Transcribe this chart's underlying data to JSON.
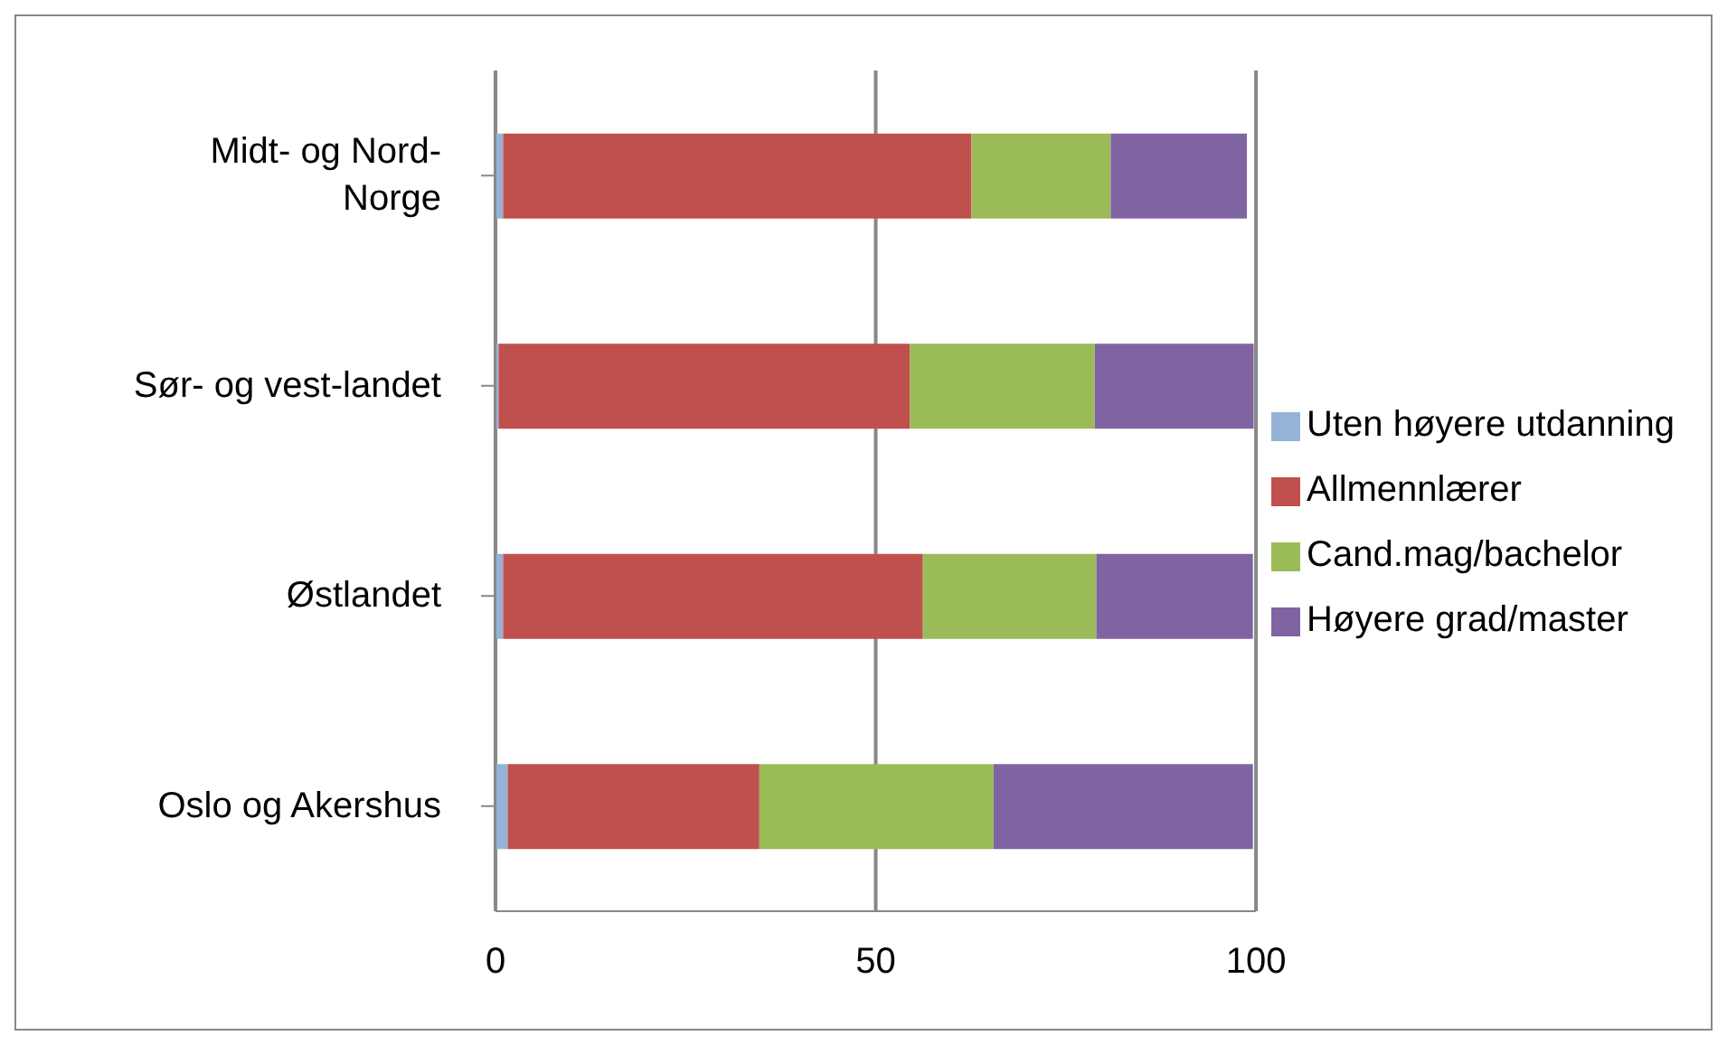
{
  "chart_data": {
    "type": "bar",
    "orientation": "horizontal",
    "stacked": true,
    "categories": [
      "Midt- og Nord-Norge",
      "Sør- og vest-landet",
      "Østlandet",
      "Oslo og Akershus"
    ],
    "series": [
      {
        "name": "Uten høyere utdanning",
        "color": "#95b3d7",
        "values": [
          1.0,
          0.4,
          1.0,
          1.6
        ]
      },
      {
        "name": "Allmennlærer",
        "color": "#c0504d",
        "values": [
          61.6,
          54.1,
          55.2,
          33.1
        ]
      },
      {
        "name": "Cand.mag/bachelor",
        "color": "#9bbb59",
        "values": [
          18.3,
          24.3,
          22.8,
          30.8
        ]
      },
      {
        "name": "Høyere grad/master",
        "color": "#8064a2",
        "values": [
          17.9,
          20.9,
          20.6,
          34.1
        ]
      }
    ],
    "xlim": [
      0,
      100
    ],
    "xticks": [
      0,
      50,
      100
    ],
    "grid": "x",
    "legend": "right"
  }
}
